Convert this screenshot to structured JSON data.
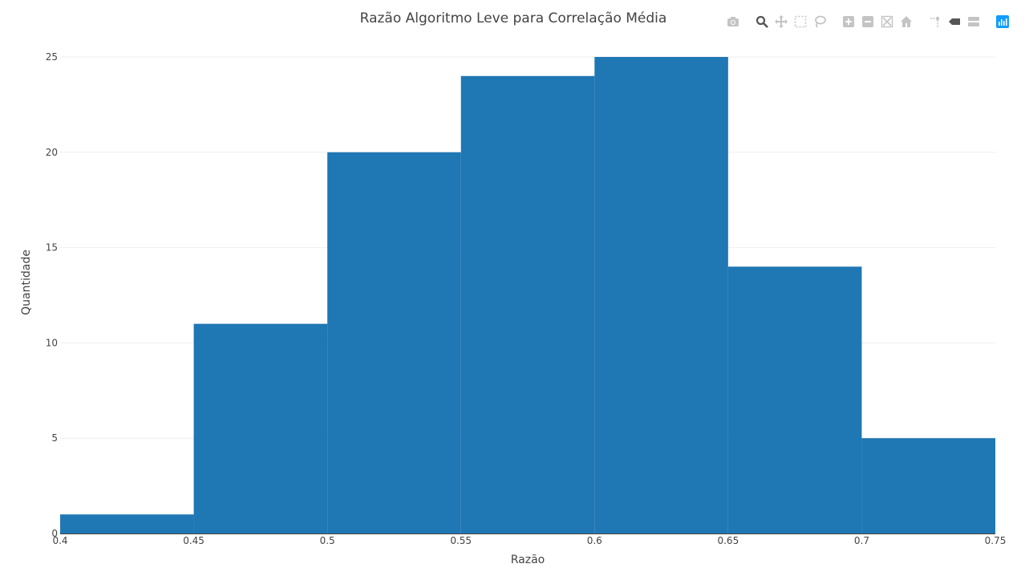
{
  "chart_data": {
    "type": "bar",
    "histogram": true,
    "title": "Razão Algoritmo Leve para Correlação Média",
    "xlabel": "Razão",
    "ylabel": "Quantidade",
    "bins": [
      {
        "start": 0.4,
        "end": 0.45,
        "count": 1
      },
      {
        "start": 0.45,
        "end": 0.5,
        "count": 11
      },
      {
        "start": 0.5,
        "end": 0.55,
        "count": 20
      },
      {
        "start": 0.55,
        "end": 0.6,
        "count": 24
      },
      {
        "start": 0.6,
        "end": 0.65,
        "count": 25
      },
      {
        "start": 0.65,
        "end": 0.7,
        "count": 14
      },
      {
        "start": 0.7,
        "end": 0.75,
        "count": 5
      }
    ],
    "xlim": [
      0.4,
      0.75
    ],
    "ylim": [
      0,
      25
    ],
    "xticks": [
      "0.4",
      "0.45",
      "0.5",
      "0.55",
      "0.6",
      "0.65",
      "0.7",
      "0.75"
    ],
    "yticks": [
      "0",
      "5",
      "10",
      "15",
      "20",
      "25"
    ],
    "grid": true,
    "bar_color": "#1f77b4"
  },
  "modebar": {
    "icons": [
      "camera-icon",
      "zoom-icon",
      "pan-icon",
      "box-select-icon",
      "lasso-select-icon",
      "zoom-in-icon",
      "zoom-out-icon",
      "autoscale-icon",
      "reset-axes-icon",
      "spike-lines-icon",
      "hover-closest-icon",
      "hover-compare-icon",
      "plotly-logo-icon"
    ]
  }
}
